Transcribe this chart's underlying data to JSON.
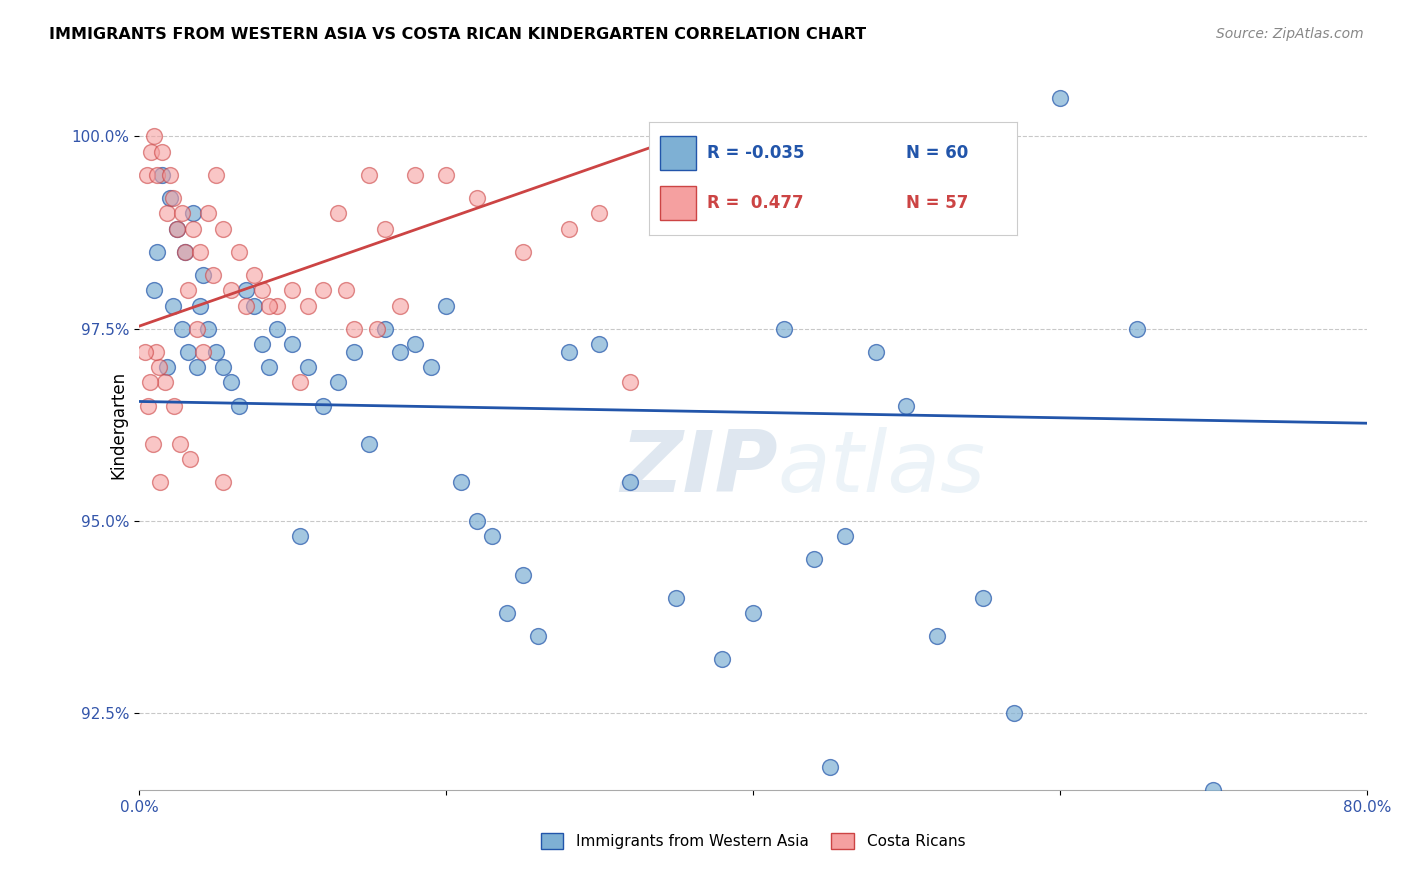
{
  "title": "IMMIGRANTS FROM WESTERN ASIA VS COSTA RICAN KINDERGARTEN CORRELATION CHART",
  "source": "Source: ZipAtlas.com",
  "ylabel": "Kindergarten",
  "xlim": [
    0.0,
    80.0
  ],
  "ylim": [
    91.5,
    101.0
  ],
  "yticks": [
    92.5,
    95.0,
    97.5,
    100.0
  ],
  "xticks": [
    0.0,
    20.0,
    40.0,
    60.0,
    80.0
  ],
  "xtick_labels": [
    "0.0%",
    "",
    "",
    "",
    "80.0%"
  ],
  "ytick_labels": [
    "92.5%",
    "95.0%",
    "97.5%",
    "100.0%"
  ],
  "legend_label1": "Immigrants from Western Asia",
  "legend_label2": "Costa Ricans",
  "legend_R1": "R = -0.035",
  "legend_N1": "N = 60",
  "legend_R2": "R =  0.477",
  "legend_N2": "N = 57",
  "color_blue": "#7EB0D4",
  "color_pink": "#F5A0A0",
  "color_blue_line": "#2255AA",
  "color_pink_line": "#CC4444",
  "watermark_zip": "ZIP",
  "watermark_atlas": "atlas",
  "blue_points_x": [
    1.5,
    2.0,
    2.5,
    3.0,
    3.5,
    4.0,
    4.5,
    5.0,
    5.5,
    6.0,
    6.5,
    7.0,
    7.5,
    8.0,
    8.5,
    9.0,
    10.0,
    11.0,
    12.0,
    13.0,
    14.0,
    15.0,
    16.0,
    17.0,
    18.0,
    19.0,
    20.0,
    21.0,
    22.0,
    23.0,
    24.0,
    25.0,
    26.0,
    28.0,
    30.0,
    32.0,
    35.0,
    38.0,
    40.0,
    42.0,
    44.0,
    45.0,
    46.0,
    48.0,
    50.0,
    52.0,
    55.0,
    57.0,
    60.0,
    65.0,
    1.0,
    1.2,
    1.8,
    2.2,
    2.8,
    3.2,
    3.8,
    4.2,
    70.0,
    10.5
  ],
  "blue_points_y": [
    99.5,
    99.2,
    98.8,
    98.5,
    99.0,
    97.8,
    97.5,
    97.2,
    97.0,
    96.8,
    96.5,
    98.0,
    97.8,
    97.3,
    97.0,
    97.5,
    97.3,
    97.0,
    96.5,
    96.8,
    97.2,
    96.0,
    97.5,
    97.2,
    97.3,
    97.0,
    97.8,
    95.5,
    95.0,
    94.8,
    93.8,
    94.3,
    93.5,
    97.2,
    97.3,
    95.5,
    94.0,
    93.2,
    93.8,
    97.5,
    94.5,
    91.8,
    94.8,
    97.2,
    96.5,
    93.5,
    94.0,
    92.5,
    100.5,
    97.5,
    98.0,
    98.5,
    97.0,
    97.8,
    97.5,
    97.2,
    97.0,
    98.2,
    91.5,
    94.8
  ],
  "pink_points_x": [
    0.5,
    0.8,
    1.0,
    1.2,
    1.5,
    1.8,
    2.0,
    2.2,
    2.5,
    2.8,
    3.0,
    3.5,
    4.0,
    4.5,
    5.0,
    5.5,
    6.0,
    6.5,
    7.0,
    7.5,
    8.0,
    9.0,
    10.0,
    11.0,
    12.0,
    13.0,
    14.0,
    15.0,
    16.0,
    18.0,
    20.0,
    22.0,
    25.0,
    28.0,
    30.0,
    32.0,
    3.2,
    3.8,
    4.2,
    4.8,
    1.3,
    1.7,
    2.3,
    0.6,
    0.9,
    1.1,
    1.4,
    2.7,
    3.3,
    5.5,
    8.5,
    10.5,
    13.5,
    15.5,
    17.0,
    0.4,
    0.7
  ],
  "pink_points_y": [
    99.5,
    99.8,
    100.0,
    99.5,
    99.8,
    99.0,
    99.5,
    99.2,
    98.8,
    99.0,
    98.5,
    98.8,
    98.5,
    99.0,
    99.5,
    98.8,
    98.0,
    98.5,
    97.8,
    98.2,
    98.0,
    97.8,
    98.0,
    97.8,
    98.0,
    99.0,
    97.5,
    99.5,
    98.8,
    99.5,
    99.5,
    99.2,
    98.5,
    98.8,
    99.0,
    96.8,
    98.0,
    97.5,
    97.2,
    98.2,
    97.0,
    96.8,
    96.5,
    96.5,
    96.0,
    97.2,
    95.5,
    96.0,
    95.8,
    95.5,
    97.8,
    96.8,
    98.0,
    97.5,
    97.8,
    97.2,
    96.8
  ]
}
